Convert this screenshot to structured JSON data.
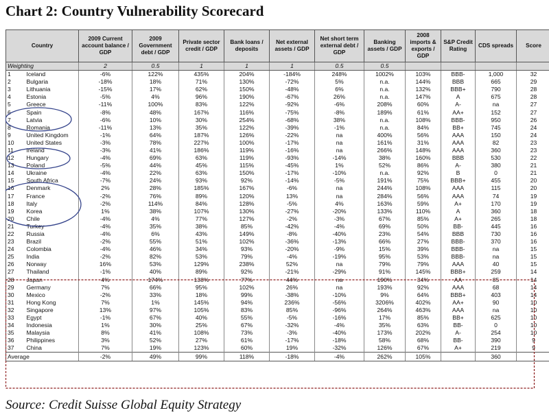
{
  "title": "Chart 2:  Country Vulnerability Scorecard",
  "source": "Source: Credit Suisse Global Equity Strategy",
  "headers": [
    "Country",
    "2009 Current account balance / GDP",
    "2009 Government debt / GDP",
    "Private sector credit / GDP",
    "Bank loans / deposits",
    "Net external assets / GDP",
    "Net short term external debt / GDP",
    "Banking assets / GDP",
    "2008 imports & exports / GDP",
    "S&P Credit Rating",
    "CDS spreads",
    "Score"
  ],
  "weighting": {
    "label": "Weighting",
    "values": [
      "2",
      "0.5",
      "1",
      "1",
      "1",
      "0.5",
      "0.5",
      "",
      "",
      "",
      ""
    ]
  },
  "rows": [
    {
      "num": "1",
      "country": "Iceland",
      "cells": [
        "-6%",
        "122%",
        "435%",
        "204%",
        "-184%",
        "248%",
        "1002%",
        "103%",
        "BBB-",
        "1,000",
        "32"
      ]
    },
    {
      "num": "2",
      "country": "Bulgaria",
      "cells": [
        "-18%",
        "18%",
        "71%",
        "130%",
        "-72%",
        "5%",
        "n.a.",
        "144%",
        "BBB",
        "665",
        "29"
      ]
    },
    {
      "num": "3",
      "country": "Lithuania",
      "cells": [
        "-15%",
        "17%",
        "62%",
        "150%",
        "-48%",
        "6%",
        "n.a.",
        "132%",
        "BBB+",
        "790",
        "28"
      ]
    },
    {
      "num": "4",
      "country": "Estonia",
      "cells": [
        "-5%",
        "4%",
        "96%",
        "190%",
        "-67%",
        "26%",
        "n.a.",
        "147%",
        "A",
        "675",
        "28"
      ]
    },
    {
      "num": "5",
      "country": "Greece",
      "cells": [
        "-11%",
        "100%",
        "83%",
        "122%",
        "-92%",
        "-6%",
        "208%",
        "60%",
        "A-",
        "na",
        "27"
      ]
    },
    {
      "num": "6",
      "country": "Spain",
      "cells": [
        "-8%",
        "48%",
        "167%",
        "116%",
        "-75%",
        "-8%",
        "189%",
        "61%",
        "AA+",
        "152",
        "27"
      ]
    },
    {
      "num": "7",
      "country": "Latvia",
      "cells": [
        "-6%",
        "10%",
        "30%",
        "254%",
        "-68%",
        "38%",
        "n.a.",
        "108%",
        "BBB-",
        "950",
        "26"
      ]
    },
    {
      "num": "8",
      "country": "Romania",
      "cells": [
        "-11%",
        "13%",
        "35%",
        "122%",
        "-39%",
        "-1%",
        "n.a.",
        "84%",
        "BB+",
        "745",
        "24"
      ]
    },
    {
      "num": "9",
      "country": "United Kingdom",
      "cells": [
        "-1%",
        "64%",
        "187%",
        "126%",
        "-22%",
        "na",
        "400%",
        "56%",
        "AAA",
        "150",
        "24"
      ]
    },
    {
      "num": "10",
      "country": "United States",
      "cells": [
        "-3%",
        "78%",
        "227%",
        "100%",
        "-17%",
        "na",
        "161%",
        "31%",
        "AAA",
        "82",
        "23"
      ]
    },
    {
      "num": "11",
      "country": "Ireland",
      "cells": [
        "-3%",
        "41%",
        "186%",
        "119%",
        "-16%",
        "na",
        "266%",
        "148%",
        "AAA",
        "360",
        "23"
      ]
    },
    {
      "num": "12",
      "country": "Hungary",
      "cells": [
        "-4%",
        "69%",
        "63%",
        "119%",
        "-93%",
        "-14%",
        "38%",
        "160%",
        "BBB",
        "530",
        "22"
      ]
    },
    {
      "num": "13",
      "country": "Poland",
      "cells": [
        "-5%",
        "44%",
        "45%",
        "115%",
        "-45%",
        "1%",
        "52%",
        "86%",
        "A-",
        "380",
        "21"
      ]
    },
    {
      "num": "14",
      "country": "Ukraine",
      "cells": [
        "-4%",
        "22%",
        "63%",
        "150%",
        "-17%",
        "-10%",
        "n.a.",
        "92%",
        "B",
        "0",
        "21"
      ]
    },
    {
      "num": "15",
      "country": "South Africa",
      "cells": [
        "-7%",
        "24%",
        "93%",
        "92%",
        "-14%",
        "-5%",
        "191%",
        "75%",
        "BBB+",
        "455",
        "20"
      ]
    },
    {
      "num": "16",
      "country": "Denmark",
      "cells": [
        "2%",
        "28%",
        "185%",
        "167%",
        "-6%",
        "na",
        "244%",
        "108%",
        "AAA",
        "115",
        "20"
      ]
    },
    {
      "num": "17",
      "country": "France",
      "cells": [
        "-2%",
        "76%",
        "89%",
        "120%",
        "13%",
        "na",
        "284%",
        "56%",
        "AAA",
        "74",
        "19"
      ]
    },
    {
      "num": "18",
      "country": "Italy",
      "cells": [
        "-2%",
        "114%",
        "84%",
        "128%",
        "-5%",
        "4%",
        "163%",
        "59%",
        "A+",
        "170",
        "19"
      ]
    },
    {
      "num": "19",
      "country": "Korea",
      "cells": [
        "1%",
        "38%",
        "107%",
        "130%",
        "-27%",
        "-20%",
        "133%",
        "110%",
        "A",
        "360",
        "18"
      ]
    },
    {
      "num": "20",
      "country": "Chile",
      "cells": [
        "-4%",
        "4%",
        "77%",
        "127%",
        "-2%",
        "-3%",
        "67%",
        "85%",
        "A+",
        "265",
        "18"
      ]
    },
    {
      "num": "21",
      "country": "Turkey",
      "cells": [
        "-4%",
        "35%",
        "38%",
        "85%",
        "-42%",
        "-4%",
        "69%",
        "50%",
        "BB-",
        "445",
        "16"
      ]
    },
    {
      "num": "22",
      "country": "Russia",
      "cells": [
        "-4%",
        "6%",
        "43%",
        "149%",
        "-8%",
        "-40%",
        "23%",
        "54%",
        "BBB",
        "730",
        "16"
      ]
    },
    {
      "num": "23",
      "country": "Brazil",
      "cells": [
        "-2%",
        "55%",
        "51%",
        "102%",
        "-36%",
        "-13%",
        "66%",
        "27%",
        "BBB-",
        "370",
        "16"
      ]
    },
    {
      "num": "24",
      "country": "Colombia",
      "cells": [
        "-4%",
        "46%",
        "34%",
        "93%",
        "-20%",
        "-9%",
        "15%",
        "39%",
        "BBB-",
        "na",
        "15"
      ]
    },
    {
      "num": "25",
      "country": "India",
      "cells": [
        "-2%",
        "82%",
        "53%",
        "79%",
        "-4%",
        "-19%",
        "95%",
        "53%",
        "BBB-",
        "na",
        "15"
      ]
    },
    {
      "num": "26",
      "country": "Norway",
      "cells": [
        "16%",
        "53%",
        "129%",
        "238%",
        "52%",
        "na",
        "79%",
        "79%",
        "AAA",
        "40",
        "15"
      ]
    },
    {
      "num": "27",
      "country": "Thailand",
      "cells": [
        "-1%",
        "40%",
        "89%",
        "92%",
        "-21%",
        "-29%",
        "91%",
        "145%",
        "BBB+",
        "259",
        "14"
      ]
    },
    {
      "num": "28",
      "country": "Japan",
      "cells": [
        "4%",
        "174%",
        "138%",
        "77%",
        "44%",
        "na",
        "190%",
        "34%",
        "AA",
        "85",
        "14"
      ]
    },
    {
      "num": "29",
      "country": "Germany",
      "cells": [
        "7%",
        "66%",
        "95%",
        "102%",
        "26%",
        "na",
        "193%",
        "92%",
        "AAA",
        "68",
        "14"
      ]
    },
    {
      "num": "30",
      "country": "Mexico",
      "cells": [
        "-2%",
        "33%",
        "18%",
        "99%",
        "-38%",
        "-10%",
        "9%",
        "64%",
        "BBB+",
        "403",
        "14"
      ]
    },
    {
      "num": "31",
      "country": "Hong Kong",
      "cells": [
        "7%",
        "1%",
        "145%",
        "94%",
        "236%",
        "-56%",
        "3206%",
        "402%",
        "AA+",
        "90",
        "10"
      ]
    },
    {
      "num": "32",
      "country": "Singapore",
      "cells": [
        "13%",
        "97%",
        "105%",
        "83%",
        "85%",
        "-96%",
        "264%",
        "463%",
        "AAA",
        "na",
        "10"
      ]
    },
    {
      "num": "33",
      "country": "Egypt",
      "cells": [
        "-1%",
        "67%",
        "40%",
        "55%",
        "-5%",
        "-16%",
        "17%",
        "85%",
        "BB+",
        "625",
        "10"
      ]
    },
    {
      "num": "34",
      "country": "Indonesia",
      "cells": [
        "1%",
        "30%",
        "25%",
        "67%",
        "-32%",
        "-4%",
        "35%",
        "63%",
        "BB-",
        "0",
        "10"
      ]
    },
    {
      "num": "35",
      "country": "Malaysia",
      "cells": [
        "8%",
        "41%",
        "108%",
        "73%",
        "-3%",
        "-40%",
        "173%",
        "202%",
        "A-",
        "254",
        "10"
      ]
    },
    {
      "num": "36",
      "country": "Philippines",
      "cells": [
        "3%",
        "52%",
        "27%",
        "61%",
        "-17%",
        "-18%",
        "58%",
        "68%",
        "BB-",
        "390",
        "9"
      ]
    },
    {
      "num": "37",
      "country": "China",
      "cells": [
        "7%",
        "19%",
        "123%",
        "60%",
        "19%",
        "-32%",
        "126%",
        "67%",
        "A+",
        "219",
        "9"
      ]
    }
  ],
  "average": {
    "label": "Average",
    "cells": [
      "-2%",
      "49%",
      "99%",
      "118%",
      "-18%",
      "-4%",
      "262%",
      "105%",
      "",
      "360",
      ""
    ]
  },
  "colors": {
    "header_bg": "#d9d9d9",
    "annotation_blue": "#33428a",
    "dashed_red": "#8b1a1a"
  }
}
